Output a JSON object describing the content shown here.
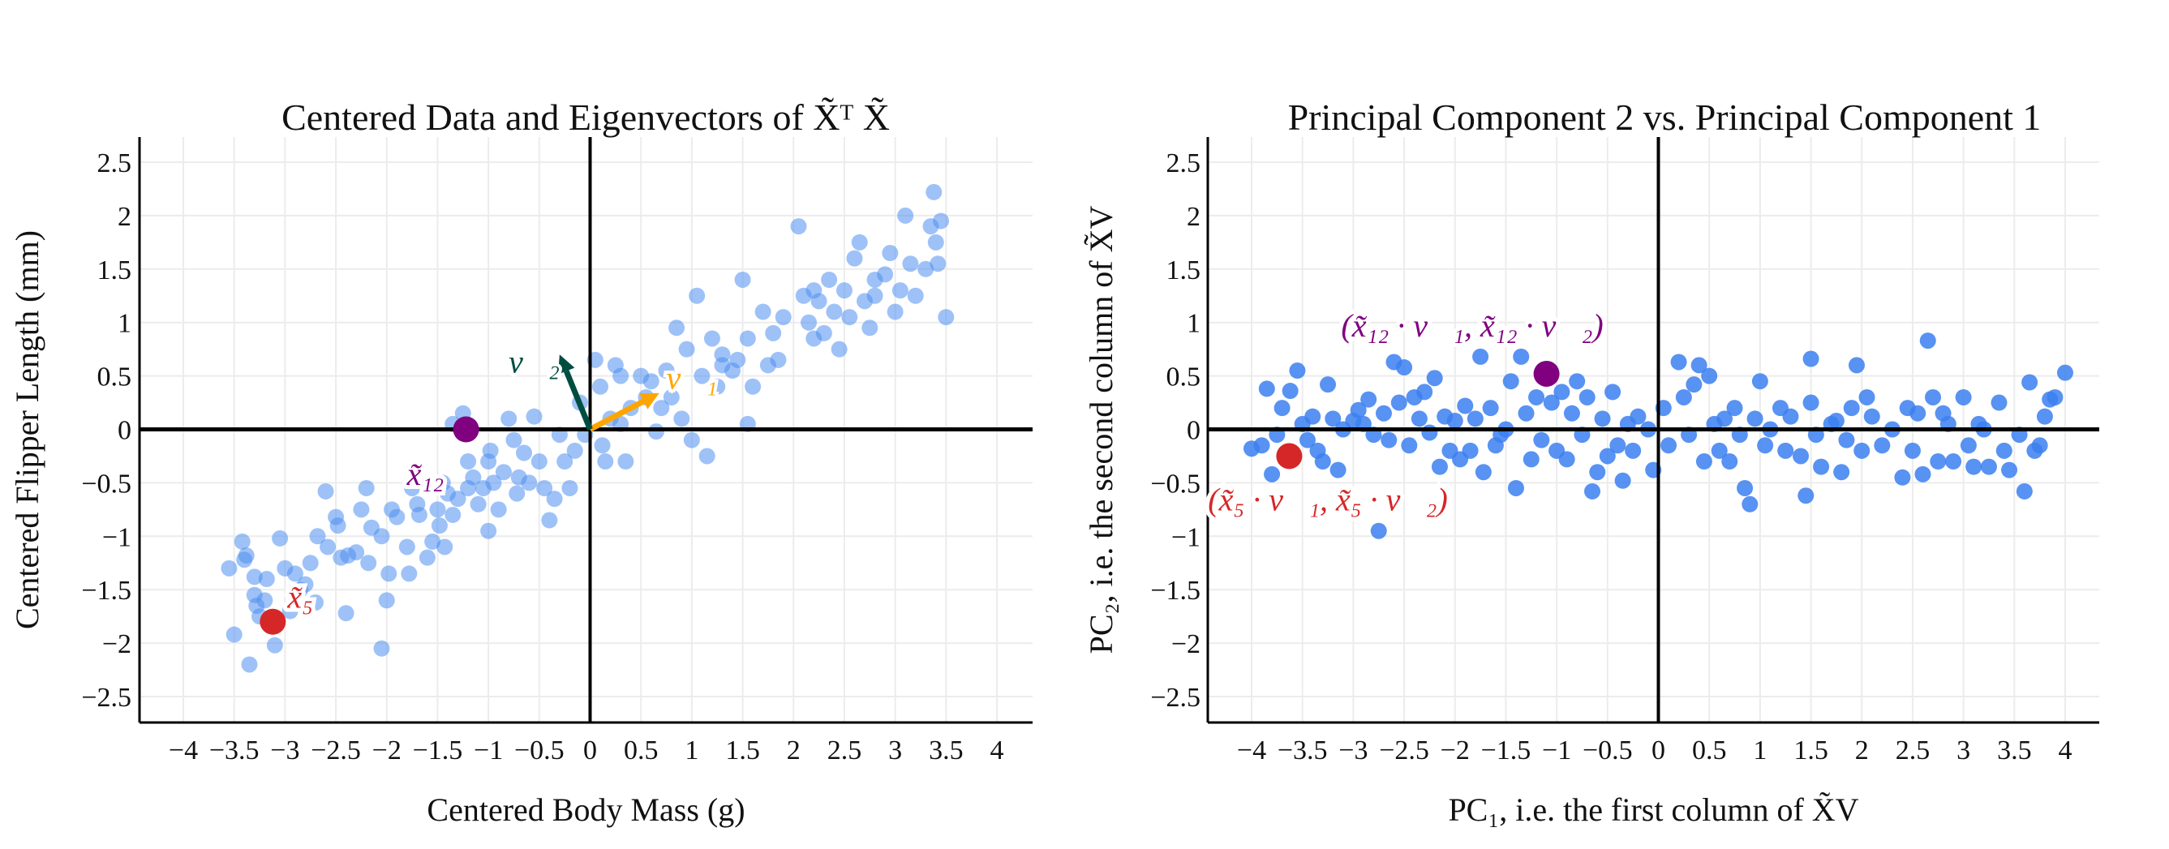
{
  "chart_data": [
    {
      "type": "scatter",
      "title": "Centered Data and Eigenvectors of X̃ᵀ X̃",
      "xlabel": "Centered Body Mass (g)",
      "ylabel": "Centered Flipper Length (mm)",
      "xlim": [
        -4.4,
        4.4
      ],
      "ylim": [
        -2.75,
        2.75
      ],
      "xticks": [
        -4,
        -3.5,
        -3,
        -2.5,
        -2,
        -1.5,
        -1,
        -0.5,
        0,
        0.5,
        1,
        1.5,
        2,
        2.5,
        3,
        3.5,
        4
      ],
      "yticks": [
        -2.5,
        -2,
        -1.5,
        -1,
        -0.5,
        0,
        0.5,
        1,
        1.5,
        2,
        2.5
      ],
      "grid": true,
      "point_color": "#4f8ff0",
      "points": [
        [
          -3.55,
          -1.3
        ],
        [
          -3.5,
          -1.92
        ],
        [
          -3.42,
          -1.05
        ],
        [
          -3.4,
          -1.22
        ],
        [
          -3.38,
          -1.18
        ],
        [
          -3.35,
          -2.2
        ],
        [
          -3.3,
          -1.38
        ],
        [
          -3.28,
          -1.65
        ],
        [
          -3.25,
          -1.75
        ],
        [
          -3.2,
          -1.6
        ],
        [
          -3.18,
          -1.4
        ],
        [
          -3.1,
          -2.02
        ],
        [
          -3.05,
          -1.02
        ],
        [
          -3.0,
          -1.3
        ],
        [
          -2.95,
          -1.7
        ],
        [
          -2.9,
          -1.35
        ],
        [
          -2.8,
          -1.45
        ],
        [
          -2.75,
          -1.25
        ],
        [
          -2.7,
          -1.62
        ],
        [
          -2.68,
          -1.0
        ],
        [
          -2.6,
          -0.58
        ],
        [
          -2.58,
          -1.1
        ],
        [
          -2.5,
          -0.82
        ],
        [
          -2.48,
          -0.9
        ],
        [
          -2.45,
          -1.2
        ],
        [
          -2.4,
          -1.72
        ],
        [
          -2.38,
          -1.18
        ],
        [
          -2.3,
          -1.15
        ],
        [
          -2.25,
          -0.75
        ],
        [
          -2.2,
          -0.55
        ],
        [
          -2.18,
          -1.25
        ],
        [
          -2.15,
          -0.92
        ],
        [
          -2.05,
          -1.0
        ],
        [
          -2.0,
          -1.6
        ],
        [
          -1.98,
          -1.35
        ],
        [
          -1.95,
          -0.75
        ],
        [
          -1.9,
          -0.82
        ],
        [
          -2.05,
          -2.05
        ],
        [
          -1.8,
          -1.1
        ],
        [
          -1.78,
          -1.35
        ],
        [
          -1.75,
          -0.55
        ],
        [
          -1.7,
          -0.7
        ],
        [
          -1.68,
          -0.8
        ],
        [
          -1.6,
          -1.2
        ],
        [
          -1.55,
          -1.05
        ],
        [
          -1.5,
          -0.75
        ],
        [
          -1.48,
          -0.9
        ],
        [
          -1.45,
          -0.5
        ],
        [
          -1.43,
          -1.1
        ],
        [
          -1.4,
          -0.6
        ],
        [
          -1.35,
          -0.8
        ],
        [
          -1.3,
          -0.65
        ],
        [
          -1.35,
          0.05
        ],
        [
          -1.2,
          -0.3
        ],
        [
          -1.25,
          0.15
        ],
        [
          -1.15,
          -0.45
        ],
        [
          -1.1,
          -0.7
        ],
        [
          -1.05,
          -0.55
        ],
        [
          -1.0,
          -0.3
        ],
        [
          -1.0,
          -0.95
        ],
        [
          -0.98,
          -0.2
        ],
        [
          -0.95,
          -0.5
        ],
        [
          -0.9,
          -0.75
        ],
        [
          -0.85,
          -0.4
        ],
        [
          -0.8,
          0.1
        ],
        [
          -0.75,
          -0.1
        ],
        [
          -0.72,
          -0.6
        ],
        [
          -0.65,
          -0.22
        ],
        [
          -0.6,
          -0.5
        ],
        [
          -0.55,
          0.12
        ],
        [
          -0.5,
          -0.3
        ],
        [
          -0.45,
          -0.55
        ],
        [
          -0.4,
          -0.85
        ],
        [
          -0.35,
          -0.65
        ],
        [
          -0.3,
          -0.05
        ],
        [
          -0.25,
          -0.3
        ],
        [
          -0.2,
          -0.55
        ],
        [
          -0.15,
          -0.2
        ],
        [
          -0.1,
          0.25
        ],
        [
          -0.05,
          -0.05
        ],
        [
          0.05,
          0.65
        ],
        [
          0.1,
          0.4
        ],
        [
          0.12,
          -0.15
        ],
        [
          0.15,
          -0.3
        ],
        [
          0.2,
          0.1
        ],
        [
          0.25,
          0.6
        ],
        [
          0.3,
          0.05
        ],
        [
          0.35,
          -0.3
        ],
        [
          0.4,
          0.2
        ],
        [
          0.5,
          0.5
        ],
        [
          0.55,
          0.3
        ],
        [
          0.6,
          0.45
        ],
        [
          0.65,
          -0.02
        ],
        [
          0.7,
          0.2
        ],
        [
          0.75,
          0.55
        ],
        [
          0.8,
          0.3
        ],
        [
          0.85,
          0.95
        ],
        [
          0.9,
          0.1
        ],
        [
          0.95,
          0.75
        ],
        [
          1.0,
          -0.1
        ],
        [
          1.05,
          1.25
        ],
        [
          1.1,
          0.5
        ],
        [
          1.15,
          -0.25
        ],
        [
          1.2,
          0.85
        ],
        [
          1.25,
          0.4
        ],
        [
          1.3,
          0.7
        ],
        [
          1.4,
          0.55
        ],
        [
          1.45,
          0.65
        ],
        [
          1.5,
          1.4
        ],
        [
          1.55,
          0.05
        ],
        [
          1.55,
          0.85
        ],
        [
          1.6,
          0.4
        ],
        [
          1.7,
          1.1
        ],
        [
          1.75,
          0.6
        ],
        [
          1.8,
          0.9
        ],
        [
          1.85,
          0.65
        ],
        [
          1.9,
          1.05
        ],
        [
          2.05,
          1.9
        ],
        [
          2.1,
          1.25
        ],
        [
          2.15,
          1.0
        ],
        [
          2.2,
          0.85
        ],
        [
          2.25,
          1.2
        ],
        [
          2.3,
          0.9
        ],
        [
          2.35,
          1.4
        ],
        [
          2.4,
          1.1
        ],
        [
          2.45,
          0.75
        ],
        [
          2.5,
          1.3
        ],
        [
          2.55,
          1.05
        ],
        [
          2.6,
          1.6
        ],
        [
          2.65,
          1.75
        ],
        [
          2.7,
          1.2
        ],
        [
          2.75,
          0.95
        ],
        [
          2.8,
          1.25
        ],
        [
          2.9,
          1.45
        ],
        [
          2.95,
          1.65
        ],
        [
          3.0,
          1.1
        ],
        [
          3.05,
          1.3
        ],
        [
          3.1,
          2.0
        ],
        [
          3.15,
          1.55
        ],
        [
          3.2,
          1.25
        ],
        [
          3.3,
          1.5
        ],
        [
          3.35,
          1.9
        ],
        [
          3.38,
          2.22
        ],
        [
          3.4,
          1.75
        ],
        [
          3.42,
          1.55
        ],
        [
          3.45,
          1.95
        ],
        [
          3.5,
          1.05
        ],
        [
          -3.3,
          -1.55
        ],
        [
          -2.85,
          -1.5
        ],
        [
          -1.2,
          -0.55
        ],
        [
          -0.7,
          -0.45
        ],
        [
          0.3,
          0.5
        ],
        [
          1.3,
          0.6
        ],
        [
          2.2,
          1.3
        ],
        [
          2.8,
          1.4
        ]
      ],
      "highlights": [
        {
          "label": "x̃₁₂",
          "x": -1.22,
          "y": 0.0,
          "color": "#800080",
          "label_x": -1.62,
          "label_y": -0.45
        },
        {
          "label": "x̃₅",
          "x": -3.12,
          "y": -1.8,
          "color": "#d62728",
          "label_x": -2.85,
          "label_y": -1.6
        }
      ],
      "vectors": [
        {
          "label": "v⃗₁",
          "x": 0.68,
          "y": 0.34,
          "color": "#ffa500",
          "label_x": 1.0,
          "label_y": 0.45
        },
        {
          "label": "v⃗₂",
          "x": -0.3,
          "y": 0.7,
          "color": "#004d40",
          "label_x": -0.55,
          "label_y": 0.6
        }
      ]
    },
    {
      "type": "scatter",
      "title": "Principal Component 2 vs. Principal Component 1",
      "xlabel": "PC₁, i.e. the first column of X̃V",
      "ylabel": "PC₂, i.e. the second column of X̃V",
      "xlim": [
        -4.4,
        4.4
      ],
      "ylim": [
        -2.75,
        2.75
      ],
      "xticks": [
        -4,
        -3.5,
        -3,
        -2.5,
        -2,
        -1.5,
        -1,
        -0.5,
        0,
        0.5,
        1,
        1.5,
        2,
        2.5,
        3,
        3.5,
        4
      ],
      "yticks": [
        -2.5,
        -2,
        -1.5,
        -1,
        -0.5,
        0,
        0.5,
        1,
        1.5,
        2,
        2.5
      ],
      "grid": true,
      "point_color": "#3b7ff0",
      "points": [
        [
          -4.0,
          -0.18
        ],
        [
          -3.9,
          -0.15
        ],
        [
          -3.85,
          0.38
        ],
        [
          -3.8,
          -0.42
        ],
        [
          -3.75,
          -0.05
        ],
        [
          -3.7,
          0.2
        ],
        [
          -3.62,
          0.36
        ],
        [
          -3.55,
          0.55
        ],
        [
          -3.5,
          0.05
        ],
        [
          -3.45,
          -0.1
        ],
        [
          -3.4,
          0.12
        ],
        [
          -3.35,
          -0.2
        ],
        [
          -3.3,
          -0.3
        ],
        [
          -3.25,
          0.42
        ],
        [
          -3.2,
          0.1
        ],
        [
          -3.15,
          -0.38
        ],
        [
          -3.1,
          0.0
        ],
        [
          -3.0,
          0.08
        ],
        [
          -2.95,
          0.18
        ],
        [
          -2.9,
          0.05
        ],
        [
          -2.85,
          0.28
        ],
        [
          -2.8,
          -0.05
        ],
        [
          -2.75,
          -0.95
        ],
        [
          -2.7,
          0.15
        ],
        [
          -2.65,
          -0.1
        ],
        [
          -2.6,
          0.63
        ],
        [
          -2.55,
          0.25
        ],
        [
          -2.5,
          0.58
        ],
        [
          -2.45,
          -0.15
        ],
        [
          -2.4,
          0.3
        ],
        [
          -2.35,
          0.1
        ],
        [
          -2.3,
          0.35
        ],
        [
          -2.25,
          -0.03
        ],
        [
          -2.2,
          0.48
        ],
        [
          -2.15,
          -0.35
        ],
        [
          -2.1,
          0.12
        ],
        [
          -2.05,
          -0.2
        ],
        [
          -2.0,
          0.08
        ],
        [
          -1.95,
          -0.28
        ],
        [
          -1.9,
          0.22
        ],
        [
          -1.85,
          -0.2
        ],
        [
          -1.8,
          0.1
        ],
        [
          -1.75,
          0.68
        ],
        [
          -1.72,
          -0.4
        ],
        [
          -1.65,
          0.2
        ],
        [
          -1.6,
          -0.15
        ],
        [
          -1.55,
          -0.05
        ],
        [
          -1.5,
          0.0
        ],
        [
          -1.45,
          0.45
        ],
        [
          -1.4,
          -0.55
        ],
        [
          -1.35,
          0.68
        ],
        [
          -1.3,
          0.15
        ],
        [
          -1.25,
          -0.28
        ],
        [
          -1.2,
          0.3
        ],
        [
          -1.15,
          -0.1
        ],
        [
          -1.05,
          0.25
        ],
        [
          -1.0,
          -0.2
        ],
        [
          -0.95,
          0.35
        ],
        [
          -0.9,
          -0.28
        ],
        [
          -0.85,
          0.15
        ],
        [
          -0.8,
          0.45
        ],
        [
          -0.75,
          -0.05
        ],
        [
          -0.7,
          0.3
        ],
        [
          -0.65,
          -0.58
        ],
        [
          -0.6,
          -0.4
        ],
        [
          -0.55,
          0.1
        ],
        [
          -0.5,
          -0.25
        ],
        [
          -0.45,
          0.35
        ],
        [
          -0.4,
          -0.15
        ],
        [
          -0.35,
          -0.48
        ],
        [
          -0.3,
          0.05
        ],
        [
          -0.25,
          -0.2
        ],
        [
          -0.2,
          0.12
        ],
        [
          -0.1,
          0.0
        ],
        [
          -0.05,
          -0.38
        ],
        [
          0.05,
          0.2
        ],
        [
          0.1,
          -0.15
        ],
        [
          0.2,
          0.63
        ],
        [
          0.25,
          0.3
        ],
        [
          0.3,
          -0.05
        ],
        [
          0.35,
          0.42
        ],
        [
          0.4,
          0.6
        ],
        [
          0.45,
          -0.3
        ],
        [
          0.5,
          0.5
        ],
        [
          0.55,
          0.05
        ],
        [
          0.6,
          -0.2
        ],
        [
          0.65,
          0.1
        ],
        [
          0.7,
          -0.3
        ],
        [
          0.75,
          0.2
        ],
        [
          0.8,
          -0.05
        ],
        [
          0.85,
          -0.55
        ],
        [
          0.9,
          -0.7
        ],
        [
          0.95,
          0.1
        ],
        [
          1.0,
          0.45
        ],
        [
          1.05,
          -0.15
        ],
        [
          1.1,
          0.0
        ],
        [
          1.2,
          0.2
        ],
        [
          1.25,
          -0.2
        ],
        [
          1.3,
          0.12
        ],
        [
          1.4,
          -0.25
        ],
        [
          1.45,
          -0.62
        ],
        [
          1.5,
          0.66
        ],
        [
          1.5,
          0.25
        ],
        [
          1.55,
          -0.05
        ],
        [
          1.6,
          -0.35
        ],
        [
          1.7,
          0.05
        ],
        [
          1.75,
          0.08
        ],
        [
          1.8,
          -0.4
        ],
        [
          1.85,
          -0.1
        ],
        [
          1.9,
          0.2
        ],
        [
          1.95,
          0.6
        ],
        [
          2.0,
          -0.2
        ],
        [
          2.05,
          0.3
        ],
        [
          2.1,
          0.12
        ],
        [
          2.2,
          -0.15
        ],
        [
          2.3,
          0.0
        ],
        [
          2.4,
          -0.45
        ],
        [
          2.45,
          0.2
        ],
        [
          2.5,
          -0.2
        ],
        [
          2.55,
          0.15
        ],
        [
          2.6,
          -0.42
        ],
        [
          2.65,
          0.83
        ],
        [
          2.7,
          0.3
        ],
        [
          2.75,
          -0.3
        ],
        [
          2.8,
          0.15
        ],
        [
          2.85,
          0.05
        ],
        [
          2.9,
          -0.3
        ],
        [
          3.0,
          0.3
        ],
        [
          3.05,
          -0.15
        ],
        [
          3.1,
          -0.35
        ],
        [
          3.15,
          0.05
        ],
        [
          3.2,
          0.0
        ],
        [
          3.25,
          -0.35
        ],
        [
          3.35,
          0.25
        ],
        [
          3.4,
          -0.2
        ],
        [
          3.45,
          -0.38
        ],
        [
          3.55,
          -0.05
        ],
        [
          3.6,
          -0.58
        ],
        [
          3.65,
          0.44
        ],
        [
          3.7,
          -0.2
        ],
        [
          3.75,
          -0.15
        ],
        [
          3.8,
          0.12
        ],
        [
          3.85,
          0.28
        ],
        [
          3.9,
          0.3
        ],
        [
          4.0,
          0.53
        ]
      ],
      "highlights": [
        {
          "label": "(x̃₁₂ · v⃗₁, x̃₁₂ · v⃗₂)",
          "x": -1.1,
          "y": 0.52,
          "color": "#800080",
          "label_x": -1.83,
          "label_y": 0.94
        },
        {
          "label": "(x̃₅ · v⃗₁, x̃₅ · v⃗₂)",
          "x": -3.63,
          "y": -0.25,
          "color": "#d62728",
          "label_x": -3.25,
          "label_y": -0.69
        }
      ],
      "vectors": []
    }
  ]
}
